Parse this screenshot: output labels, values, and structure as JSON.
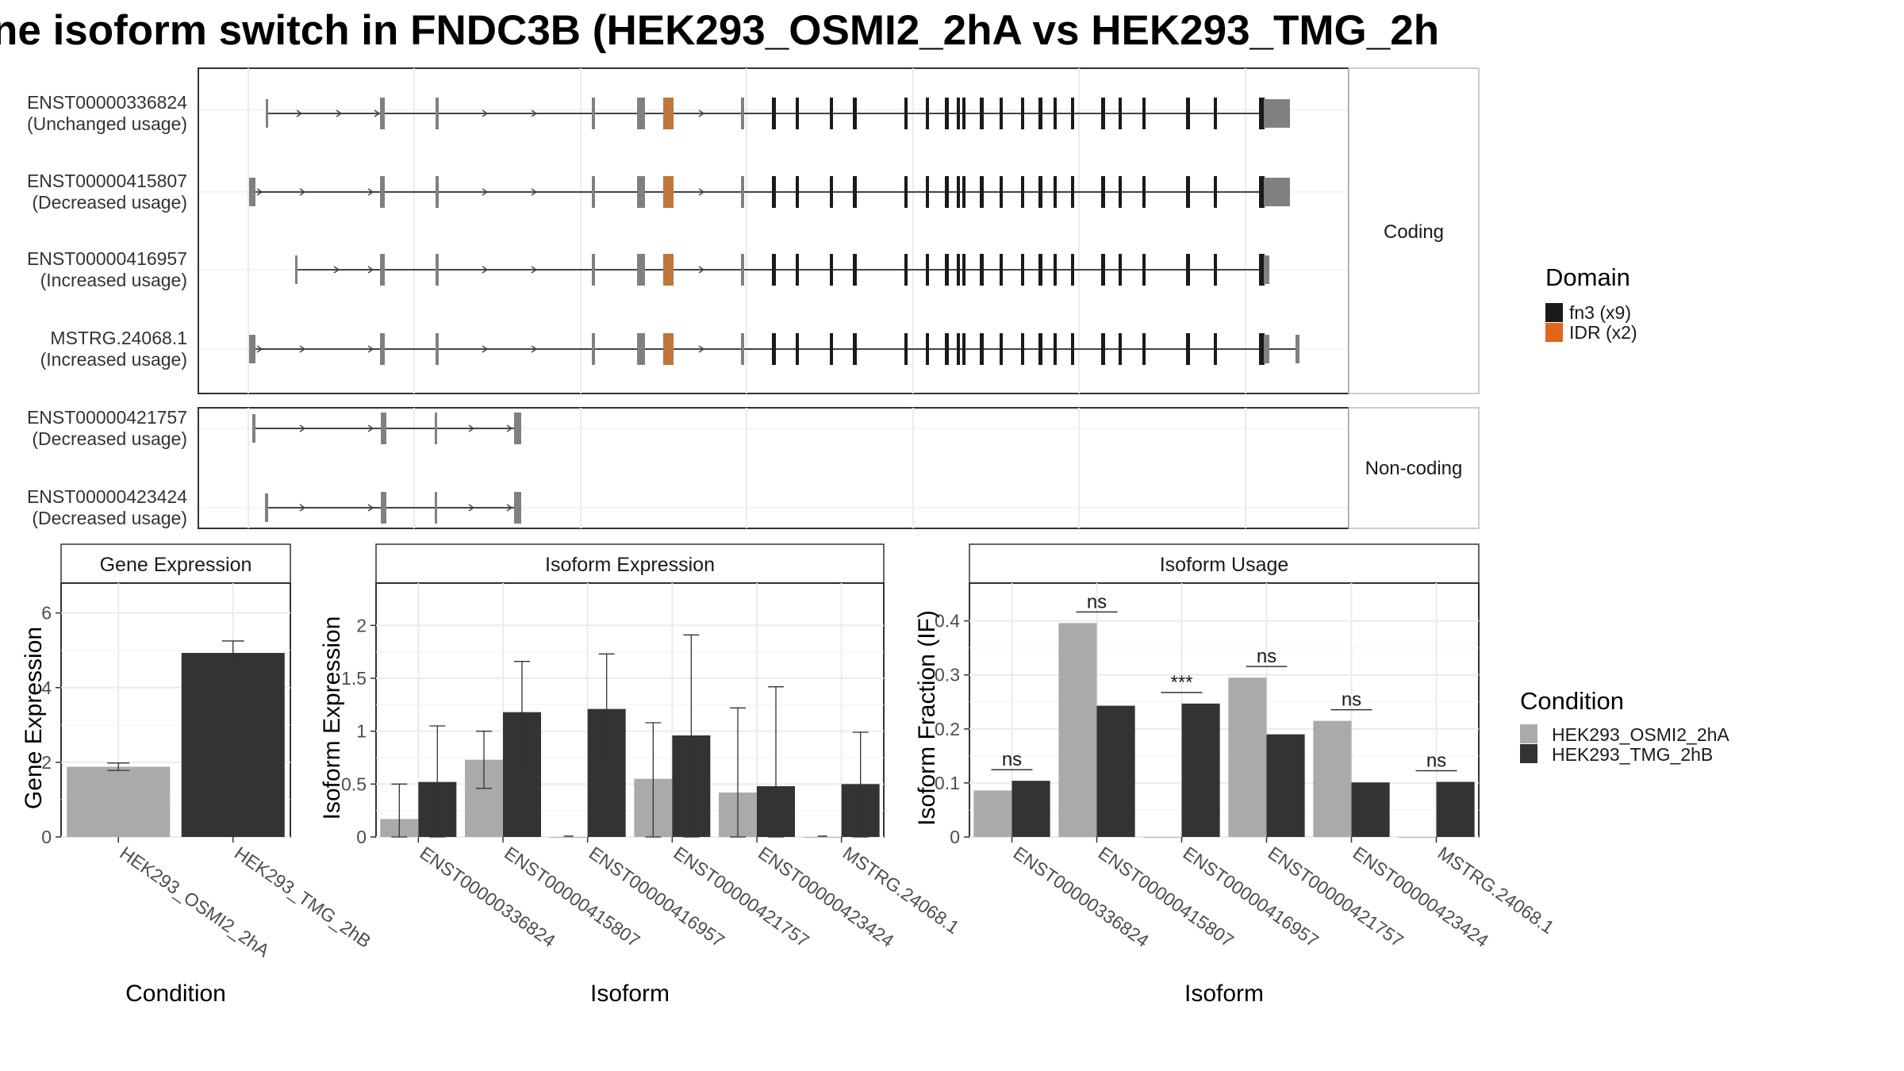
{
  "title": "ne isoform switch in FNDC3B (HEK293_OSMI2_2hA vs HEK293_TMG_2h",
  "structure": {
    "coding_label": "Coding",
    "noncoding_label": "Non-coding",
    "coding": [
      {
        "id": "ENST00000336824",
        "usage": "(Unchanged usage)"
      },
      {
        "id": "ENST00000415807",
        "usage": "(Decreased usage)"
      },
      {
        "id": "ENST00000416957",
        "usage": "(Increased usage)"
      },
      {
        "id": "MSTRG.24068.1",
        "usage": "(Increased usage)"
      }
    ],
    "noncoding": [
      {
        "id": "ENST00000421757",
        "usage": "(Decreased usage)"
      },
      {
        "id": "ENST00000423424",
        "usage": "(Decreased usage)"
      }
    ]
  },
  "legend_domain": {
    "title": "Domain",
    "items": [
      {
        "label": "fn3 (x9)",
        "color": "#1a1a1a"
      },
      {
        "label": "IDR (x2)",
        "color": "#e0661a"
      }
    ]
  },
  "legend_condition": {
    "title": "Condition",
    "items": [
      {
        "label": "HEK293_OSMI2_2hA",
        "color": "#aaaaaa"
      },
      {
        "label": "HEK293_TMG_2hB",
        "color": "#333333"
      }
    ]
  },
  "colors": {
    "condA": "#aaaaaa",
    "condB": "#333333",
    "exon": "#808080",
    "fn3": "#1a1a1a",
    "idr": "#c0763a"
  },
  "chart_data": [
    {
      "type": "bar",
      "strip": "Gene Expression",
      "xlabel": "Condition",
      "ylabel": "Gene Expression",
      "ylim": [
        0,
        6.8
      ],
      "yticks": [
        0,
        2,
        4,
        6
      ],
      "categories": [
        "HEK293_OSMI2_2hA",
        "HEK293_TMG_2hB"
      ],
      "values": [
        1.88,
        4.93
      ],
      "err_low": [
        1.78,
        4.62
      ],
      "err_high": [
        1.98,
        5.25
      ]
    },
    {
      "type": "bar",
      "strip": "Isoform Expression",
      "xlabel": "Isoform",
      "ylabel": "Isoform Expression",
      "ylim": [
        0,
        2.4
      ],
      "yticks": [
        0.0,
        0.5,
        1.0,
        1.5,
        2.0
      ],
      "categories": [
        "ENST00000336824",
        "ENST00000415807",
        "ENST00000416957",
        "ENST00000421757",
        "ENST00000423424",
        "MSTRG.24068.1"
      ],
      "series": [
        {
          "name": "HEK293_OSMI2_2hA",
          "values": [
            0.17,
            0.73,
            0.0,
            0.55,
            0.42,
            0.0
          ],
          "err_low": [
            0.0,
            0.46,
            0.0,
            0.0,
            0.0,
            0.0
          ],
          "err_high": [
            0.5,
            1.0,
            0.0,
            1.08,
            1.22,
            0.0
          ]
        },
        {
          "name": "HEK293_TMG_2hB",
          "values": [
            0.52,
            1.18,
            1.21,
            0.96,
            0.48,
            0.5
          ],
          "err_low": [
            0.0,
            0.69,
            0.7,
            0.0,
            0.0,
            0.0
          ],
          "err_high": [
            1.05,
            1.66,
            1.73,
            1.91,
            1.42,
            0.99
          ]
        }
      ]
    },
    {
      "type": "bar",
      "strip": "Isoform Usage",
      "xlabel": "Isoform",
      "ylabel": "Isoform Fraction (IF)",
      "ylim": [
        0,
        0.47
      ],
      "yticks": [
        0.0,
        0.1,
        0.2,
        0.3,
        0.4
      ],
      "categories": [
        "ENST00000336824",
        "ENST00000415807",
        "ENST00000416957",
        "ENST00000421757",
        "ENST00000423424",
        "MSTRG.24068.1"
      ],
      "series": [
        {
          "name": "HEK293_OSMI2_2hA",
          "values": [
            0.086,
            0.396,
            0.0,
            0.295,
            0.215,
            0.0
          ]
        },
        {
          "name": "HEK293_TMG_2hB",
          "values": [
            0.104,
            0.243,
            0.247,
            0.19,
            0.101,
            0.102
          ]
        }
      ],
      "significance": [
        "ns",
        "ns",
        "***",
        "ns",
        "ns",
        "ns"
      ]
    }
  ]
}
